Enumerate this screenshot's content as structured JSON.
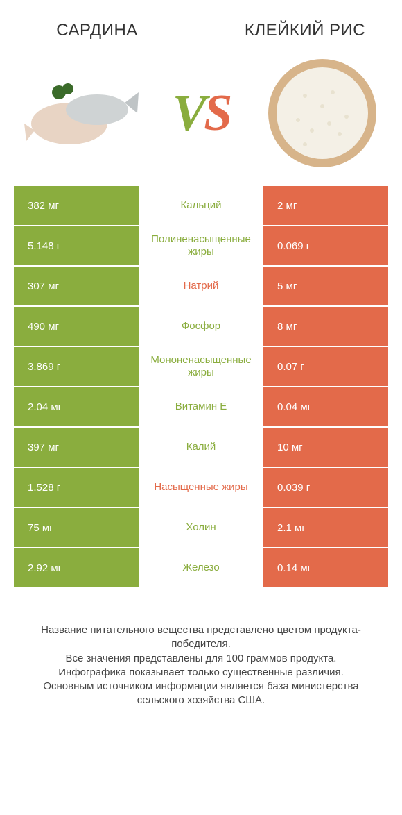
{
  "colors": {
    "left": "#8aad3e",
    "right": "#e36a4a",
    "text": "#444444",
    "bg": "#ffffff"
  },
  "header": {
    "left_title": "Сардина",
    "right_title": "Клейкий рис",
    "vs_v": "V",
    "vs_s": "S"
  },
  "table": {
    "rows": [
      {
        "left": "382 мг",
        "label": "Кальций",
        "right": "2 мг",
        "winner": "left"
      },
      {
        "left": "5.148 г",
        "label": "Полиненасыщенные жиры",
        "right": "0.069 г",
        "winner": "left"
      },
      {
        "left": "307 мг",
        "label": "Натрий",
        "right": "5 мг",
        "winner": "right"
      },
      {
        "left": "490 мг",
        "label": "Фосфор",
        "right": "8 мг",
        "winner": "left"
      },
      {
        "left": "3.869 г",
        "label": "Мононенасыщенные жиры",
        "right": "0.07 г",
        "winner": "left"
      },
      {
        "left": "2.04 мг",
        "label": "Витамин E",
        "right": "0.04 мг",
        "winner": "left"
      },
      {
        "left": "397 мг",
        "label": "Калий",
        "right": "10 мг",
        "winner": "left"
      },
      {
        "left": "1.528 г",
        "label": "Насыщенные жиры",
        "right": "0.039 г",
        "winner": "right"
      },
      {
        "left": "75 мг",
        "label": "Холин",
        "right": "2.1 мг",
        "winner": "left"
      },
      {
        "left": "2.92 мг",
        "label": "Железо",
        "right": "0.14 мг",
        "winner": "left"
      }
    ]
  },
  "footer": {
    "line1": "Название питательного вещества представлено цветом продукта-победителя.",
    "line2": "Все значения представлены для 100 граммов продукта.",
    "line3": "Инфографика показывает только существенные различия.",
    "line4": "Основным источником информации является база министерства сельского хозяйства США."
  }
}
